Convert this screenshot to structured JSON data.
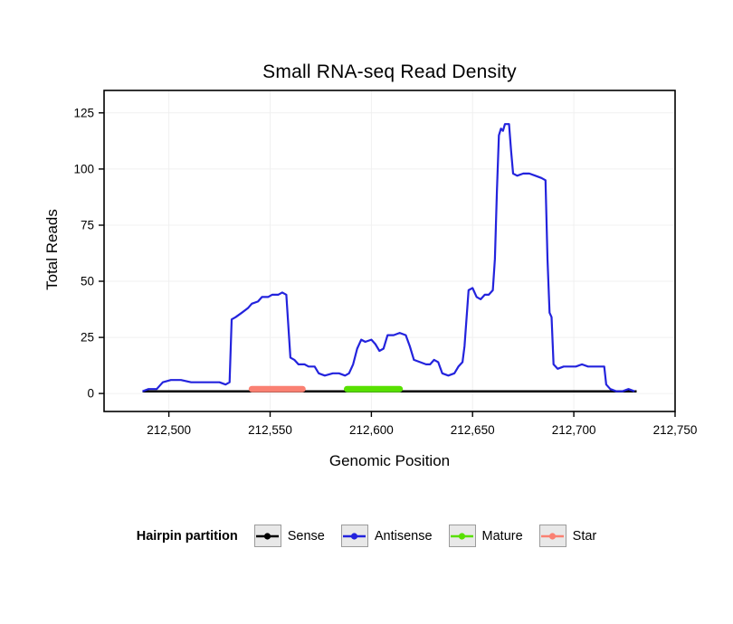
{
  "legend": {
    "title": "Hairpin partition",
    "items": [
      {
        "name": "sense",
        "label": "Sense",
        "color": "#000000"
      },
      {
        "name": "antisense",
        "label": "Antisense",
        "color": "#2323dd"
      },
      {
        "name": "mature",
        "label": "Mature",
        "color": "#58e000"
      },
      {
        "name": "star",
        "label": "Star",
        "color": "#fa8072"
      }
    ]
  },
  "chart_data": {
    "type": "line",
    "title": "Small RNA-seq Read Density",
    "xlabel": "Genomic Position",
    "ylabel": "Total Reads",
    "xlim": [
      212468,
      212750
    ],
    "ylim": [
      -8,
      135
    ],
    "grid": true,
    "grid_color": "#f0f0f0",
    "xticks": [
      {
        "value": 212500,
        "label": "212,500"
      },
      {
        "value": 212550,
        "label": "212,550"
      },
      {
        "value": 212600,
        "label": "212,600"
      },
      {
        "value": 212650,
        "label": "212,650"
      },
      {
        "value": 212700,
        "label": "212,700"
      },
      {
        "value": 212750,
        "label": "212,750"
      }
    ],
    "yticks": [
      {
        "value": 0,
        "label": "0"
      },
      {
        "value": 25,
        "label": "25"
      },
      {
        "value": 50,
        "label": "50"
      },
      {
        "value": 75,
        "label": "75"
      },
      {
        "value": 100,
        "label": "100"
      },
      {
        "value": 125,
        "label": "125"
      }
    ],
    "series": [
      {
        "name": "Sense",
        "color": "#000000",
        "width": 2.5,
        "points": [
          [
            212487,
            1
          ],
          [
            212731,
            1
          ]
        ]
      },
      {
        "name": "Star",
        "color": "#fa8072",
        "width": 7,
        "points": [
          [
            212541,
            2
          ],
          [
            212566,
            2
          ]
        ]
      },
      {
        "name": "Mature",
        "color": "#58e000",
        "width": 7,
        "points": [
          [
            212588,
            2
          ],
          [
            212614,
            2
          ]
        ]
      },
      {
        "name": "Antisense",
        "color": "#2323dd",
        "width": 2.2,
        "points": [
          [
            212487,
            1
          ],
          [
            212490,
            2
          ],
          [
            212494,
            2
          ],
          [
            212497,
            5
          ],
          [
            212501,
            6
          ],
          [
            212506,
            6
          ],
          [
            212511,
            5
          ],
          [
            212516,
            5
          ],
          [
            212521,
            5
          ],
          [
            212525,
            5
          ],
          [
            212528,
            4
          ],
          [
            212530,
            5
          ],
          [
            212531,
            33
          ],
          [
            212533,
            34
          ],
          [
            212536,
            36
          ],
          [
            212539,
            38
          ],
          [
            212541,
            40
          ],
          [
            212544,
            41
          ],
          [
            212546,
            43
          ],
          [
            212549,
            43
          ],
          [
            212551,
            44
          ],
          [
            212554,
            44
          ],
          [
            212556,
            45
          ],
          [
            212558,
            44
          ],
          [
            212560,
            16
          ],
          [
            212562,
            15
          ],
          [
            212564,
            13
          ],
          [
            212567,
            13
          ],
          [
            212569,
            12
          ],
          [
            212572,
            12
          ],
          [
            212574,
            9
          ],
          [
            212577,
            8
          ],
          [
            212581,
            9
          ],
          [
            212584,
            9
          ],
          [
            212587,
            8
          ],
          [
            212589,
            9
          ],
          [
            212591,
            13
          ],
          [
            212593,
            20
          ],
          [
            212595,
            24
          ],
          [
            212597,
            23
          ],
          [
            212600,
            24
          ],
          [
            212602,
            22
          ],
          [
            212604,
            19
          ],
          [
            212606,
            20
          ],
          [
            212608,
            26
          ],
          [
            212611,
            26
          ],
          [
            212614,
            27
          ],
          [
            212617,
            26
          ],
          [
            212619,
            21
          ],
          [
            212621,
            15
          ],
          [
            212624,
            14
          ],
          [
            212627,
            13
          ],
          [
            212629,
            13
          ],
          [
            212631,
            15
          ],
          [
            212633,
            14
          ],
          [
            212635,
            9
          ],
          [
            212638,
            8
          ],
          [
            212641,
            9
          ],
          [
            212643,
            12
          ],
          [
            212645,
            14
          ],
          [
            212646,
            21
          ],
          [
            212648,
            46
          ],
          [
            212650,
            47
          ],
          [
            212652,
            43
          ],
          [
            212654,
            42
          ],
          [
            212656,
            44
          ],
          [
            212658,
            44
          ],
          [
            212660,
            46
          ],
          [
            212661,
            60
          ],
          [
            212662,
            90
          ],
          [
            212663,
            115
          ],
          [
            212664,
            118
          ],
          [
            212665,
            117
          ],
          [
            212666,
            120
          ],
          [
            212668,
            120
          ],
          [
            212669,
            108
          ],
          [
            212670,
            98
          ],
          [
            212672,
            97
          ],
          [
            212675,
            98
          ],
          [
            212678,
            98
          ],
          [
            212681,
            97
          ],
          [
            212684,
            96
          ],
          [
            212686,
            95
          ],
          [
            212687,
            60
          ],
          [
            212688,
            36
          ],
          [
            212689,
            34
          ],
          [
            212690,
            13
          ],
          [
            212692,
            11
          ],
          [
            212695,
            12
          ],
          [
            212698,
            12
          ],
          [
            212701,
            12
          ],
          [
            212704,
            13
          ],
          [
            212707,
            12
          ],
          [
            212710,
            12
          ],
          [
            212713,
            12
          ],
          [
            212715,
            12
          ],
          [
            212716,
            4
          ],
          [
            212718,
            2
          ],
          [
            212721,
            1
          ],
          [
            212724,
            1
          ],
          [
            212727,
            2
          ],
          [
            212730,
            1
          ]
        ]
      }
    ]
  }
}
